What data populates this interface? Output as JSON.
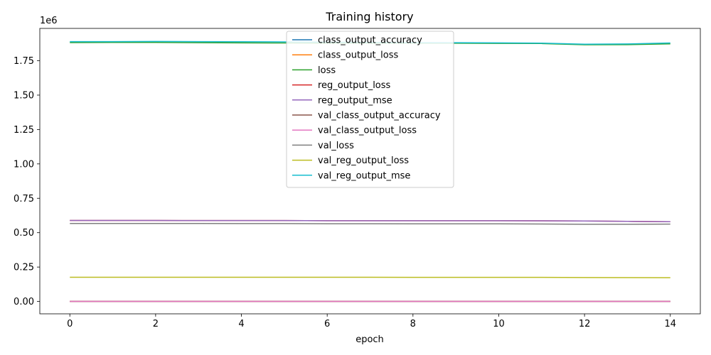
{
  "chart_data": {
    "type": "line",
    "title": "Training history",
    "xlabel": "epoch",
    "ylabel": "",
    "offset_text": "1e6",
    "x": [
      0,
      1,
      2,
      3,
      4,
      5,
      6,
      7,
      8,
      9,
      10,
      11,
      12,
      13,
      14
    ],
    "xlim": [
      -0.7,
      14.7
    ],
    "ylim": [
      -90000,
      1985000
    ],
    "x_ticks": [
      0,
      2,
      4,
      6,
      8,
      10,
      12,
      14
    ],
    "y_ticks": [
      0,
      250000,
      500000,
      750000,
      1000000,
      1250000,
      1500000,
      1750000
    ],
    "y_tick_labels": [
      "0.00",
      "0.25",
      "0.50",
      "0.75",
      "1.00",
      "1.25",
      "1.50",
      "1.75"
    ],
    "grid": false,
    "legend_position": "top-center",
    "series": [
      {
        "name": "class_output_accuracy",
        "color": "#1f77b4",
        "values": [
          0.5,
          0.5,
          0.5,
          0.5,
          0.5,
          0.5,
          0.5,
          0.5,
          0.5,
          0.5,
          0.5,
          0.5,
          0.5,
          0.5,
          0.5
        ]
      },
      {
        "name": "class_output_loss",
        "color": "#ff7f0e",
        "values": [
          1,
          1,
          1,
          1,
          1,
          1,
          1,
          1,
          1,
          1,
          1,
          1,
          1,
          1,
          1
        ]
      },
      {
        "name": "loss",
        "color": "#2ca02c",
        "values": [
          1882000,
          1883000,
          1883000,
          1881000,
          1880000,
          1879000,
          1878000,
          1878000,
          1877000,
          1877000,
          1876000,
          1875000,
          1866000,
          1867000,
          1873000
        ]
      },
      {
        "name": "reg_output_loss",
        "color": "#d62728",
        "values": [
          589000,
          589000,
          589000,
          588000,
          588000,
          588000,
          587000,
          587000,
          587000,
          587000,
          587000,
          586000,
          585000,
          582000,
          580000
        ]
      },
      {
        "name": "reg_output_mse",
        "color": "#9467bd",
        "values": [
          589000,
          589000,
          589000,
          588000,
          588000,
          588000,
          587000,
          587000,
          587000,
          587000,
          587000,
          586000,
          585000,
          582000,
          580000
        ]
      },
      {
        "name": "val_class_output_accuracy",
        "color": "#8c564b",
        "values": [
          0.5,
          0.5,
          0.5,
          0.5,
          0.5,
          0.5,
          0.5,
          0.5,
          0.5,
          0.5,
          0.5,
          0.5,
          0.5,
          0.5,
          0.5
        ]
      },
      {
        "name": "val_class_output_loss",
        "color": "#e377c2",
        "values": [
          2,
          2,
          2,
          2,
          2,
          2,
          2,
          2,
          2,
          2,
          2,
          2,
          2,
          2,
          2
        ]
      },
      {
        "name": "val_loss",
        "color": "#7f7f7f",
        "values": [
          567000,
          567000,
          567000,
          567000,
          566000,
          566000,
          565000,
          565000,
          564000,
          564000,
          564000,
          563000,
          561000,
          561000,
          562000
        ]
      },
      {
        "name": "val_reg_output_loss",
        "color": "#bcbd22",
        "values": [
          176000,
          176000,
          176000,
          176000,
          176000,
          175500,
          175500,
          175500,
          175000,
          175000,
          175000,
          175000,
          174000,
          173000,
          172500
        ]
      },
      {
        "name": "val_reg_output_mse",
        "color": "#17becf",
        "values": [
          1889000,
          1889000,
          1890000,
          1889000,
          1888000,
          1887000,
          1885000,
          1883000,
          1882000,
          1881000,
          1880000,
          1878000,
          1870000,
          1872000,
          1879000
        ]
      }
    ]
  }
}
